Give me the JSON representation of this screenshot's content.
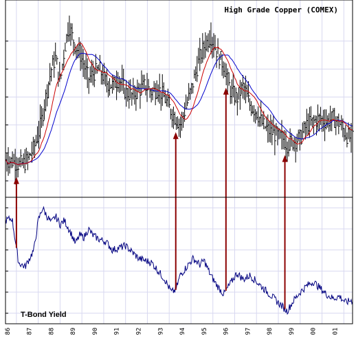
{
  "chart_data": [
    {
      "type": "bar",
      "style": "ohlc-bar-chart with moving averages",
      "title": "High Grade Copper (COMEX)",
      "x_tick_labels": [
        "86",
        "87",
        "88",
        "89",
        "90",
        "91",
        "92",
        "93",
        "94",
        "95",
        "96",
        "97",
        "98",
        "99",
        "00",
        "01"
      ],
      "grid": true,
      "colors": {
        "bars": "#000000",
        "ma_short": "#cc0000",
        "ma_long": "#0000cc",
        "grid": "#d8d8f0",
        "arrows": "#8b0000"
      },
      "series": [
        {
          "kind": "price",
          "x": [
            1986.0,
            1986.3,
            1986.6,
            1986.9,
            1987.1,
            1987.3,
            1987.5,
            1987.7,
            1987.9,
            1988.1,
            1988.3,
            1988.5,
            1988.7,
            1988.9,
            1989.0,
            1989.2,
            1989.4,
            1989.6,
            1989.8,
            1990.0,
            1990.3,
            1990.6,
            1990.9,
            1991.2,
            1991.5,
            1991.8,
            1992.1,
            1992.4,
            1992.7,
            1993.0,
            1993.3,
            1993.6,
            1993.8,
            1994.0,
            1994.3,
            1994.6,
            1994.9,
            1995.1,
            1995.4,
            1995.7,
            1996.0,
            1996.3,
            1996.6,
            1996.9,
            1997.2,
            1997.5,
            1997.8,
            1998.1,
            1998.4,
            1998.7,
            1998.9,
            1999.2,
            1999.5,
            1999.8,
            2000.1,
            2000.4,
            2000.7,
            2001.0,
            2001.3,
            2001.6,
            2001.8
          ],
          "y": [
            63,
            62,
            60,
            61,
            65,
            70,
            78,
            90,
            105,
            118,
            125,
            110,
            130,
            145,
            140,
            132,
            128,
            120,
            112,
            115,
            118,
            110,
            108,
            112,
            104,
            102,
            105,
            108,
            104,
            106,
            100,
            92,
            88,
            84,
            96,
            110,
            125,
            132,
            138,
            128,
            120,
            105,
            100,
            108,
            96,
            92,
            84,
            80,
            78,
            76,
            72,
            74,
            76,
            84,
            86,
            88,
            86,
            88,
            85,
            78,
            76
          ]
        },
        {
          "kind": "yield",
          "x": [
            1986.0,
            1986.3,
            1986.6,
            1986.9,
            1987.1,
            1987.3,
            1987.5,
            1987.7,
            1987.9,
            1988.1,
            1988.3,
            1988.5,
            1988.7,
            1988.9,
            1989.0,
            1989.2,
            1989.4,
            1989.6,
            1989.8,
            1990.0,
            1990.3,
            1990.6,
            1990.9,
            1991.2,
            1991.5,
            1991.8,
            1992.1,
            1992.4,
            1992.7,
            1993.0,
            1993.3,
            1993.6,
            1993.8,
            1994.0,
            1994.3,
            1994.6,
            1994.9,
            1995.1,
            1995.4,
            1995.7,
            1996.0,
            1996.3,
            1996.6,
            1996.9,
            1997.2,
            1997.5,
            1997.8,
            1998.1,
            1998.4,
            1998.7,
            1998.9,
            1999.2,
            1999.5,
            1999.8,
            2000.1,
            2000.4,
            2000.7,
            2001.0,
            2001.3,
            2001.6,
            2001.8
          ],
          "y": [
            9.4,
            9.5,
            7.4,
            7.2,
            7.6,
            8.0,
            9.4,
            10.0,
            9.6,
            9.3,
            9.6,
            9.2,
            9.4,
            9.0,
            8.8,
            8.3,
            8.7,
            8.6,
            9.0,
            8.7,
            8.5,
            8.4,
            8.0,
            8.1,
            8.2,
            7.9,
            7.6,
            7.5,
            7.4,
            7.0,
            6.6,
            6.0,
            6.1,
            6.8,
            7.2,
            7.6,
            7.3,
            7.5,
            6.8,
            6.3,
            5.9,
            6.4,
            6.9,
            6.6,
            6.8,
            6.5,
            6.2,
            5.9,
            5.6,
            5.3,
            5.1,
            5.6,
            6.0,
            6.3,
            6.5,
            6.2,
            5.9,
            5.7,
            5.8,
            5.5,
            5.6
          ]
        }
      ]
    },
    {
      "type": "line",
      "title": "T-Bond Yield",
      "x_tick_labels": [
        "86",
        "87",
        "88",
        "89",
        "90",
        "91",
        "92",
        "93",
        "94",
        "95",
        "96",
        "97",
        "98",
        "99",
        "00",
        "01"
      ],
      "grid": true,
      "colors": {
        "line": "#000080",
        "grid": "#d8d8f0"
      }
    }
  ],
  "arrows": [
    {
      "label": "",
      "year": 1986.5
    },
    {
      "label": "",
      "year": 1993.8
    },
    {
      "label": "",
      "year": 1996.1
    },
    {
      "label": "",
      "year": 1998.8
    }
  ]
}
